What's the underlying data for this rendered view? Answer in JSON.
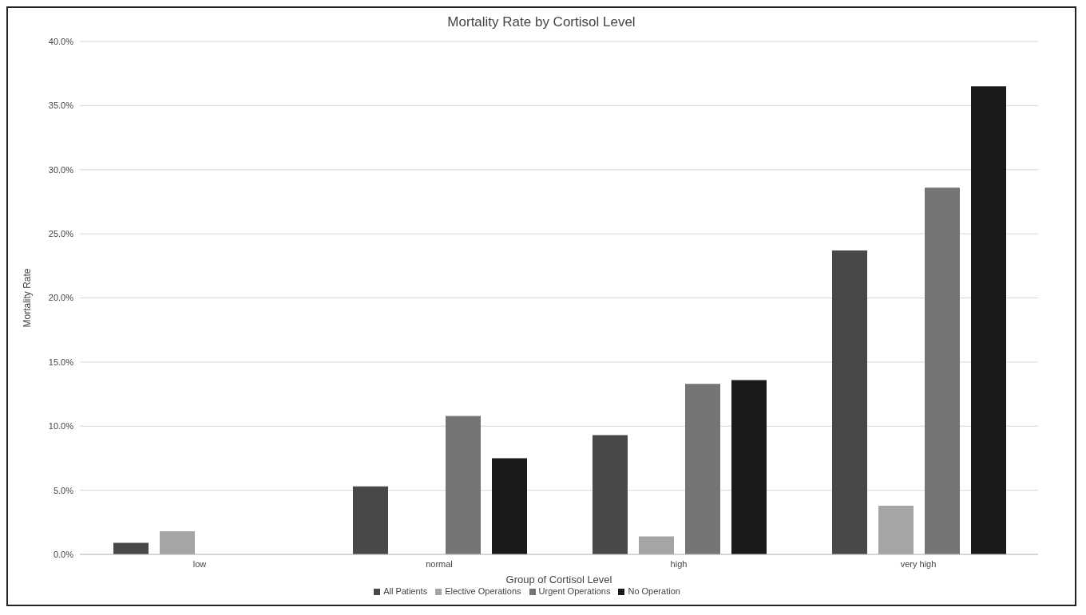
{
  "chart_data": {
    "type": "bar",
    "title": "Mortality Rate by Cortisol Level",
    "xlabel": "Group of Cortisol Level",
    "ylabel": "Mortality Rate",
    "categories": [
      "low",
      "normal",
      "high",
      "very high"
    ],
    "series": [
      {
        "name": "All Patients",
        "color": "#484848",
        "values": [
          0.9,
          5.3,
          9.3,
          23.7
        ]
      },
      {
        "name": "Elective Operations",
        "color": "#a5a5a5",
        "values": [
          1.8,
          0,
          1.4,
          3.8
        ]
      },
      {
        "name": "Urgent Operations",
        "color": "#757575",
        "values": [
          0,
          10.8,
          13.3,
          28.6
        ]
      },
      {
        "name": "No Operation",
        "color": "#1a1a1a",
        "values": [
          0,
          7.5,
          13.6,
          36.5
        ]
      }
    ],
    "ylim": [
      0,
      40
    ],
    "yticks": [
      {
        "value": 0,
        "label": "0.0%"
      },
      {
        "value": 5,
        "label": "5.0%"
      },
      {
        "value": 10,
        "label": "10.0%"
      },
      {
        "value": 15,
        "label": "15.0%"
      },
      {
        "value": 20,
        "label": "20.0%"
      },
      {
        "value": 25,
        "label": "25.0%"
      },
      {
        "value": 30,
        "label": "30.0%"
      },
      {
        "value": 35,
        "label": "35.0%"
      },
      {
        "value": 40,
        "label": "40.0%"
      }
    ],
    "grid": "y",
    "legend": "bottom"
  }
}
